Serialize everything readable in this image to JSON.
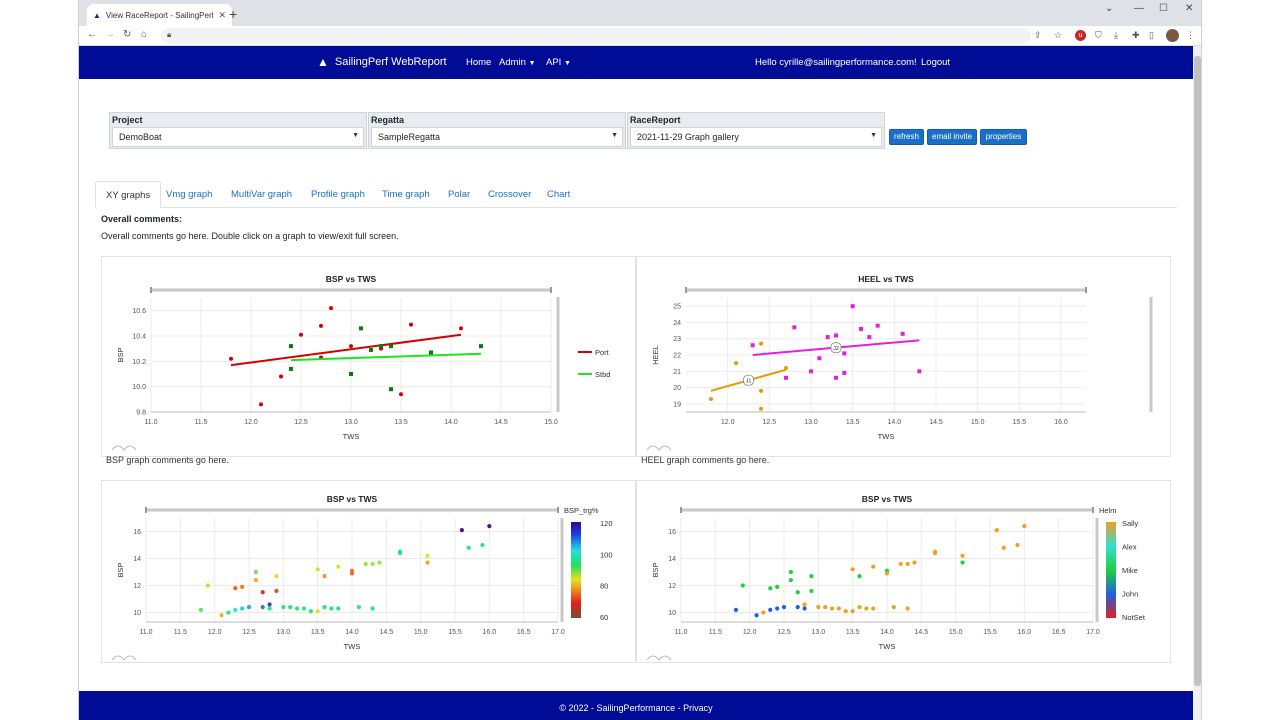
{
  "browser": {
    "tab_title": "View RaceReport - SailingPerfWe"
  },
  "navbar": {
    "brand": "SailingPerf WebReport",
    "home": "Home",
    "admin": "Admin",
    "api": "API",
    "greeting": "Hello cyrille@sailingperformance.com!",
    "logout": "Logout",
    "color": "#000c96"
  },
  "form": {
    "project_label": "Project",
    "project_value": "DemoBoat",
    "regatta_label": "Regatta",
    "regatta_value": "SampleRegatta",
    "racereport_label": "RaceReport",
    "racereport_value": "2021-11-29 Graph gallery",
    "refresh": "refresh",
    "email_invite": "email invite",
    "properties": "properties"
  },
  "tabs": [
    "XY graphs",
    "Vmg graph",
    "MultiVar graph",
    "Profile graph",
    "Time graph",
    "Polar",
    "Crossover",
    "Chart"
  ],
  "comments": {
    "title": "Overall comments:",
    "text": "Overall comments go here. Double click on a graph to view/exit full screen."
  },
  "panel_comments": {
    "bsp": "BSP graph comments go here.",
    "heel": "HEEL graph comments go here."
  },
  "footer": {
    "copyright": "© 2022 - SailingPerformance - ",
    "privacy": "Privacy"
  },
  "chart_data": [
    {
      "type": "scatter",
      "title": "BSP vs TWS",
      "xlabel": "TWS",
      "ylabel": "BSP",
      "xlim": [
        11.0,
        15.0
      ],
      "ylim": [
        9.8,
        10.7
      ],
      "xticks": [
        11.0,
        11.5,
        12.0,
        12.5,
        13.0,
        13.5,
        14.0,
        14.5,
        15.0
      ],
      "yticks": [
        9.8,
        10.0,
        10.2,
        10.4,
        10.6
      ],
      "series": [
        {
          "name": "Port",
          "color": "#d40000",
          "marker": "circle",
          "x": [
            11.8,
            12.1,
            12.3,
            12.5,
            12.7,
            12.7,
            12.8,
            13.0,
            13.3,
            13.4,
            13.5,
            13.6,
            14.1
          ],
          "y": [
            10.22,
            9.86,
            10.08,
            10.41,
            10.48,
            10.23,
            10.62,
            10.32,
            10.3,
            10.32,
            9.94,
            10.49,
            10.46
          ],
          "fit": [
            [
              11.8,
              10.17
            ],
            [
              14.1,
              10.41
            ]
          ]
        },
        {
          "name": "Stbd",
          "color": "#0a7a0a",
          "marker": "square",
          "x": [
            12.4,
            12.4,
            13.0,
            13.1,
            13.2,
            13.3,
            13.4,
            13.4,
            13.8,
            14.3
          ],
          "y": [
            10.32,
            10.14,
            10.1,
            10.46,
            10.29,
            10.32,
            9.98,
            10.32,
            10.27,
            10.32
          ],
          "fit": [
            [
              12.4,
              10.21
            ],
            [
              14.3,
              10.26
            ]
          ],
          "fit_color": "#1ee61e"
        }
      ],
      "legend": "right"
    },
    {
      "type": "scatter",
      "title": "HEEL vs TWS",
      "xlabel": "TWS",
      "ylabel": "HEEL",
      "xlim": [
        11.5,
        16.3
      ],
      "ylim": [
        18.5,
        25.5
      ],
      "xticks": [
        12.0,
        12.5,
        13.0,
        13.5,
        14.0,
        14.5,
        15.0,
        15.5,
        16.0
      ],
      "yticks": [
        19,
        20,
        21,
        22,
        23,
        24,
        25
      ],
      "series": [
        {
          "name": "J1",
          "color": "#e69a00",
          "marker": "circle",
          "x": [
            11.8,
            12.1,
            12.4,
            12.4,
            12.4,
            12.7
          ],
          "y": [
            19.3,
            21.5,
            18.7,
            19.8,
            22.7,
            21.2
          ],
          "fit": [
            [
              11.8,
              19.8
            ],
            [
              12.7,
              21.1
            ]
          ]
        },
        {
          "name": "J2",
          "color": "#e020e0",
          "marker": "square",
          "x": [
            12.3,
            12.7,
            12.8,
            13.0,
            13.1,
            13.2,
            13.3,
            13.3,
            13.4,
            13.4,
            13.5,
            13.6,
            13.7,
            13.8,
            14.1,
            14.3
          ],
          "y": [
            22.6,
            20.6,
            23.7,
            21.0,
            21.8,
            23.1,
            23.2,
            20.6,
            22.1,
            20.9,
            25.0,
            23.6,
            23.1,
            23.8,
            23.3,
            21.0
          ],
          "fit": [
            [
              12.3,
              22.0
            ],
            [
              14.3,
              22.9
            ]
          ]
        }
      ]
    },
    {
      "type": "scatter",
      "title": "BSP vs TWS",
      "xlabel": "TWS",
      "ylabel": "BSP",
      "xlim": [
        11.0,
        17.0
      ],
      "ylim": [
        9.3,
        17.0
      ],
      "xticks": [
        11.0,
        11.5,
        12.0,
        12.5,
        13.0,
        13.5,
        14.0,
        14.5,
        15.0,
        15.5,
        16.0,
        16.5,
        17.0
      ],
      "yticks": [
        10,
        12,
        14,
        16
      ],
      "colorbar": {
        "label": "BSP_trg%",
        "ticks": [
          120,
          100,
          80,
          60
        ],
        "range": [
          60,
          120
        ]
      },
      "points": [
        [
          11.8,
          10.2,
          98
        ],
        [
          11.9,
          12.0,
          90
        ],
        [
          12.1,
          9.8,
          88
        ],
        [
          12.2,
          10.0,
          100
        ],
        [
          12.3,
          11.8,
          80
        ],
        [
          12.3,
          10.2,
          105
        ],
        [
          12.4,
          11.9,
          82
        ],
        [
          12.4,
          10.3,
          106
        ],
        [
          12.5,
          10.4,
          108
        ],
        [
          12.6,
          13.0,
          97
        ],
        [
          12.6,
          12.4,
          86
        ],
        [
          12.7,
          11.5,
          75
        ],
        [
          12.7,
          10.4,
          110
        ],
        [
          12.8,
          10.6,
          115
        ],
        [
          12.8,
          10.3,
          100
        ],
        [
          12.9,
          12.7,
          92
        ],
        [
          12.9,
          11.6,
          78
        ],
        [
          13.0,
          10.4,
          100
        ],
        [
          13.1,
          10.4,
          100
        ],
        [
          13.2,
          10.3,
          100
        ],
        [
          13.3,
          10.3,
          100
        ],
        [
          13.4,
          10.1,
          100
        ],
        [
          13.5,
          13.2,
          92
        ],
        [
          13.5,
          10.1,
          92
        ],
        [
          13.6,
          12.7,
          84
        ],
        [
          13.6,
          10.4,
          100
        ],
        [
          13.7,
          10.3,
          100
        ],
        [
          13.8,
          13.4,
          92
        ],
        [
          13.8,
          10.3,
          100
        ],
        [
          14.0,
          13.1,
          82
        ],
        [
          14.0,
          12.9,
          80
        ],
        [
          14.1,
          10.4,
          100
        ],
        [
          14.2,
          13.6,
          95
        ],
        [
          14.3,
          10.3,
          100
        ],
        [
          14.3,
          13.6,
          95
        ],
        [
          14.4,
          13.7,
          95
        ],
        [
          14.7,
          14.5,
          100
        ],
        [
          14.7,
          14.4,
          100
        ],
        [
          15.1,
          14.2,
          92
        ],
        [
          15.1,
          13.7,
          85
        ],
        [
          15.6,
          16.1,
          120
        ],
        [
          15.7,
          14.8,
          100
        ],
        [
          15.9,
          15.0,
          100
        ],
        [
          16.0,
          16.4,
          120
        ]
      ]
    },
    {
      "type": "scatter",
      "title": "BSP vs TWS",
      "xlabel": "TWS",
      "ylabel": "BSP",
      "xlim": [
        11.0,
        17.0
      ],
      "ylim": [
        9.3,
        17.0
      ],
      "xticks": [
        11.0,
        11.5,
        12.0,
        12.5,
        13.0,
        13.5,
        14.0,
        14.5,
        15.0,
        15.5,
        16.0,
        16.5,
        17.0
      ],
      "yticks": [
        10,
        12,
        14,
        16
      ],
      "colorbar": {
        "label": "Helm",
        "categories": [
          "Sally",
          "Alex",
          "Mike",
          "John",
          "NotSet"
        ]
      },
      "points": [
        [
          11.8,
          10.2,
          "John"
        ],
        [
          11.9,
          12.0,
          "Mike"
        ],
        [
          12.1,
          9.8,
          "John"
        ],
        [
          12.2,
          10.0,
          "Sally"
        ],
        [
          12.3,
          11.8,
          "Mike"
        ],
        [
          12.3,
          10.2,
          "John"
        ],
        [
          12.4,
          11.9,
          "Mike"
        ],
        [
          12.4,
          10.3,
          "John"
        ],
        [
          12.5,
          10.4,
          "John"
        ],
        [
          12.6,
          13.0,
          "Mike"
        ],
        [
          12.6,
          12.4,
          "Mike"
        ],
        [
          12.7,
          11.5,
          "Mike"
        ],
        [
          12.7,
          10.4,
          "John"
        ],
        [
          12.8,
          10.6,
          "Sally"
        ],
        [
          12.8,
          10.3,
          "John"
        ],
        [
          12.9,
          12.7,
          "Mike"
        ],
        [
          12.9,
          11.6,
          "Mike"
        ],
        [
          13.0,
          10.4,
          "Sally"
        ],
        [
          13.1,
          10.4,
          "Sally"
        ],
        [
          13.2,
          10.3,
          "Sally"
        ],
        [
          13.3,
          10.3,
          "Sally"
        ],
        [
          13.4,
          10.1,
          "Sally"
        ],
        [
          13.5,
          13.2,
          "Sally"
        ],
        [
          13.5,
          10.1,
          "Sally"
        ],
        [
          13.6,
          12.7,
          "Mike"
        ],
        [
          13.6,
          10.4,
          "Sally"
        ],
        [
          13.7,
          10.3,
          "Sally"
        ],
        [
          13.8,
          13.4,
          "Sally"
        ],
        [
          13.8,
          10.3,
          "Sally"
        ],
        [
          14.0,
          13.1,
          "Mike"
        ],
        [
          14.0,
          12.9,
          "Sally"
        ],
        [
          14.1,
          10.4,
          "Sally"
        ],
        [
          14.2,
          13.6,
          "Sally"
        ],
        [
          14.3,
          10.3,
          "Sally"
        ],
        [
          14.3,
          13.6,
          "Sally"
        ],
        [
          14.4,
          13.7,
          "Sally"
        ],
        [
          14.7,
          14.5,
          "Sally"
        ],
        [
          14.7,
          14.4,
          "Sally"
        ],
        [
          15.1,
          14.2,
          "Sally"
        ],
        [
          15.1,
          13.7,
          "Mike"
        ],
        [
          15.6,
          16.1,
          "Sally"
        ],
        [
          15.7,
          14.8,
          "Sally"
        ],
        [
          15.9,
          15.0,
          "Sally"
        ],
        [
          16.0,
          16.4,
          "Sally"
        ]
      ]
    }
  ]
}
